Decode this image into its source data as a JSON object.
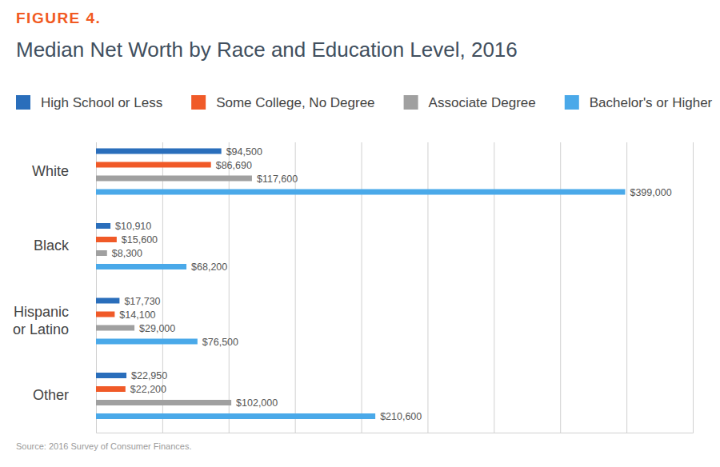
{
  "chart_data": {
    "type": "bar",
    "orientation": "horizontal",
    "figure_label": "FIGURE 4.",
    "title": "Median Net Worth by Race and Education Level, 2016",
    "source": "Source: 2016 Survey of Consumer Finances.",
    "categories": [
      "White",
      "Black",
      "Hispanic or Latino",
      "Other"
    ],
    "series": [
      {
        "name": "High School or Less",
        "color": "#2a6ebb",
        "values": [
          94500,
          10910,
          17730,
          22950
        ],
        "value_labels": [
          "$94,500",
          "$10,910",
          "$17,730",
          "$22,950"
        ]
      },
      {
        "name": "Some College, No Degree",
        "color": "#f05a28",
        "values": [
          86690,
          15600,
          14100,
          22200
        ],
        "value_labels": [
          "$86,690",
          "$15,600",
          "$14,100",
          "$22,200"
        ]
      },
      {
        "name": "Associate Degree",
        "color": "#a0a0a0",
        "values": [
          117600,
          8300,
          29000,
          102000
        ],
        "value_labels": [
          "$117,600",
          "$8,300",
          "$29,000",
          "$102,000"
        ]
      },
      {
        "name": "Bachelor's or Higher",
        "color": "#4aa9e9",
        "values": [
          399000,
          68200,
          76500,
          210600
        ],
        "value_labels": [
          "$399,000",
          "$68,200",
          "$76,500",
          "$210,600"
        ]
      }
    ],
    "xlim": [
      0,
      450000
    ],
    "xticks": [
      0,
      50000,
      100000,
      150000,
      200000,
      250000,
      300000,
      350000,
      400000,
      450000
    ],
    "grid": true,
    "tick_labels": "y",
    "data_labels": true,
    "legend": "top"
  }
}
